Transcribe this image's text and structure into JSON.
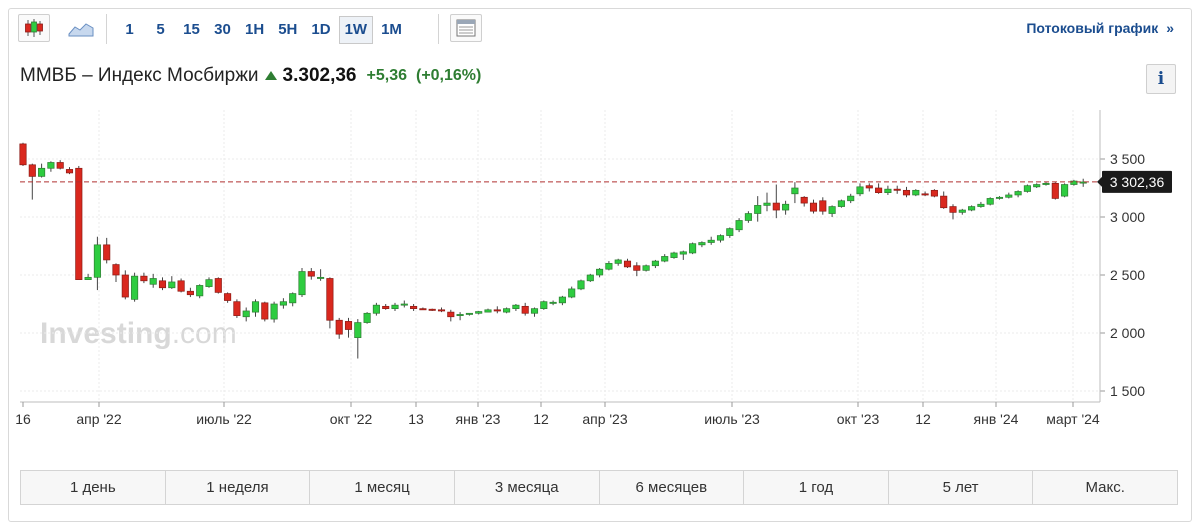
{
  "toolbar": {
    "candle_icon": "candlestick-icon",
    "area_icon": "area-chart-icon",
    "intervals": [
      "1",
      "5",
      "15",
      "30",
      "1H",
      "5H",
      "1D",
      "1W",
      "1M"
    ],
    "active_interval": "1W",
    "table_icon": "table-icon",
    "stream_link": "Потоковый график",
    "stream_chevron": "»"
  },
  "instrument": {
    "name": "ММВБ – Индекс Мосбиржи",
    "price": "3.302,36",
    "change": "+5,36",
    "change_pct": "(+0,16%)",
    "direction_icon": "up-arrow-icon",
    "info_label": "i"
  },
  "watermark": {
    "main": "Investing",
    "suffix": ".com"
  },
  "colors": {
    "up": "#2ecc40",
    "up_border": "#2e7d32",
    "down": "#d9281e",
    "down_border": "#8b1a14",
    "price_line": "#b03030",
    "accent": "#1b4d8f"
  },
  "chart_data": {
    "type": "candlestick",
    "interval": "1W",
    "y_ticks": [
      3500,
      3000,
      2500,
      2000,
      1500
    ],
    "y_tick_labels": [
      "3 500",
      "3 000",
      "2 500",
      "2 000",
      "1 500"
    ],
    "ylim": [
      1400,
      3550
    ],
    "current_price": 3302.36,
    "current_price_label": "3 302,36",
    "x_tick_labels": [
      "16",
      "апр '22",
      "июль '22",
      "окт '22",
      "13",
      "янв '23",
      "12",
      "апр '23",
      "июль '23",
      "окт '23",
      "12",
      "янв '24",
      "март '24"
    ],
    "grid": true,
    "candles": [
      [
        3630,
        3640,
        3440,
        3450
      ],
      [
        3450,
        3460,
        3150,
        3350
      ],
      [
        3350,
        3460,
        3340,
        3420
      ],
      [
        3420,
        3480,
        3390,
        3470
      ],
      [
        3470,
        3490,
        3410,
        3420
      ],
      [
        3410,
        3430,
        3370,
        3380
      ],
      [
        3420,
        3440,
        2460,
        2460
      ],
      [
        2460,
        2510,
        2460,
        2480
      ],
      [
        2480,
        2830,
        2370,
        2760
      ],
      [
        2760,
        2820,
        2600,
        2630
      ],
      [
        2590,
        2600,
        2440,
        2500
      ],
      [
        2500,
        2540,
        2290,
        2310
      ],
      [
        2290,
        2520,
        2270,
        2490
      ],
      [
        2490,
        2520,
        2430,
        2450
      ],
      [
        2420,
        2510,
        2390,
        2470
      ],
      [
        2450,
        2480,
        2370,
        2390
      ],
      [
        2390,
        2490,
        2380,
        2440
      ],
      [
        2450,
        2470,
        2350,
        2360
      ],
      [
        2360,
        2390,
        2310,
        2330
      ],
      [
        2320,
        2420,
        2300,
        2410
      ],
      [
        2400,
        2480,
        2390,
        2460
      ],
      [
        2470,
        2480,
        2340,
        2350
      ],
      [
        2340,
        2350,
        2260,
        2280
      ],
      [
        2270,
        2290,
        2130,
        2150
      ],
      [
        2140,
        2220,
        2100,
        2190
      ],
      [
        2180,
        2290,
        2140,
        2270
      ],
      [
        2260,
        2270,
        2100,
        2120
      ],
      [
        2120,
        2270,
        2090,
        2250
      ],
      [
        2240,
        2300,
        2210,
        2270
      ],
      [
        2260,
        2350,
        2230,
        2340
      ],
      [
        2330,
        2560,
        2310,
        2530
      ],
      [
        2530,
        2560,
        2460,
        2490
      ],
      [
        2470,
        2550,
        2450,
        2480
      ],
      [
        2470,
        2480,
        2040,
        2110
      ],
      [
        2110,
        2130,
        1950,
        1990
      ],
      [
        2100,
        2130,
        1960,
        2030
      ],
      [
        1960,
        2120,
        1780,
        2090
      ],
      [
        2090,
        2180,
        2080,
        2170
      ],
      [
        2170,
        2260,
        2150,
        2240
      ],
      [
        2230,
        2250,
        2200,
        2210
      ],
      [
        2210,
        2260,
        2190,
        2240
      ],
      [
        2240,
        2280,
        2220,
        2250
      ],
      [
        2230,
        2250,
        2190,
        2210
      ],
      [
        2210,
        2220,
        2200,
        2205
      ],
      [
        2205,
        2210,
        2190,
        2200
      ],
      [
        2200,
        2220,
        2180,
        2190
      ],
      [
        2180,
        2200,
        2100,
        2140
      ],
      [
        2150,
        2180,
        2110,
        2160
      ],
      [
        2160,
        2170,
        2150,
        2170
      ],
      [
        2170,
        2190,
        2160,
        2185
      ],
      [
        2180,
        2210,
        2180,
        2200
      ],
      [
        2200,
        2230,
        2170,
        2190
      ],
      [
        2180,
        2220,
        2170,
        2210
      ],
      [
        2210,
        2250,
        2190,
        2240
      ],
      [
        2230,
        2260,
        2150,
        2170
      ],
      [
        2170,
        2220,
        2140,
        2210
      ],
      [
        2210,
        2280,
        2200,
        2270
      ],
      [
        2260,
        2280,
        2240,
        2265
      ],
      [
        2260,
        2320,
        2240,
        2310
      ],
      [
        2310,
        2400,
        2300,
        2380
      ],
      [
        2380,
        2460,
        2370,
        2450
      ],
      [
        2450,
        2510,
        2440,
        2500
      ],
      [
        2500,
        2560,
        2480,
        2550
      ],
      [
        2550,
        2620,
        2540,
        2600
      ],
      [
        2600,
        2640,
        2580,
        2630
      ],
      [
        2620,
        2640,
        2560,
        2570
      ],
      [
        2580,
        2610,
        2490,
        2540
      ],
      [
        2540,
        2590,
        2530,
        2580
      ],
      [
        2580,
        2630,
        2560,
        2620
      ],
      [
        2620,
        2680,
        2610,
        2660
      ],
      [
        2650,
        2700,
        2640,
        2690
      ],
      [
        2680,
        2710,
        2630,
        2700
      ],
      [
        2690,
        2780,
        2680,
        2770
      ],
      [
        2760,
        2790,
        2740,
        2780
      ],
      [
        2780,
        2830,
        2760,
        2800
      ],
      [
        2800,
        2850,
        2780,
        2840
      ],
      [
        2840,
        2910,
        2820,
        2900
      ],
      [
        2890,
        2990,
        2870,
        2970
      ],
      [
        2970,
        3050,
        2950,
        3030
      ],
      [
        3030,
        3180,
        2960,
        3100
      ],
      [
        3100,
        3210,
        3050,
        3120
      ],
      [
        3120,
        3280,
        2990,
        3060
      ],
      [
        3060,
        3140,
        3020,
        3110
      ],
      [
        3200,
        3300,
        3120,
        3250
      ],
      [
        3170,
        3180,
        3090,
        3120
      ],
      [
        3120,
        3150,
        3030,
        3050
      ],
      [
        3140,
        3170,
        3020,
        3050
      ],
      [
        3030,
        3100,
        3000,
        3090
      ],
      [
        3090,
        3150,
        3080,
        3140
      ],
      [
        3140,
        3200,
        3120,
        3180
      ],
      [
        3200,
        3290,
        3180,
        3260
      ],
      [
        3270,
        3290,
        3220,
        3250
      ],
      [
        3250,
        3290,
        3200,
        3210
      ],
      [
        3210,
        3270,
        3190,
        3240
      ],
      [
        3240,
        3270,
        3200,
        3230
      ],
      [
        3230,
        3260,
        3170,
        3190
      ],
      [
        3190,
        3240,
        3180,
        3230
      ],
      [
        3200,
        3220,
        3180,
        3190
      ],
      [
        3230,
        3240,
        3170,
        3180
      ],
      [
        3180,
        3220,
        3070,
        3080
      ],
      [
        3090,
        3110,
        2980,
        3040
      ],
      [
        3040,
        3070,
        3020,
        3060
      ],
      [
        3060,
        3100,
        3050,
        3090
      ],
      [
        3090,
        3130,
        3080,
        3110
      ],
      [
        3110,
        3170,
        3100,
        3160
      ],
      [
        3160,
        3180,
        3150,
        3170
      ],
      [
        3170,
        3210,
        3160,
        3190
      ],
      [
        3190,
        3230,
        3170,
        3220
      ],
      [
        3220,
        3280,
        3210,
        3270
      ],
      [
        3260,
        3290,
        3250,
        3280
      ],
      [
        3280,
        3300,
        3270,
        3290
      ],
      [
        3290,
        3300,
        3150,
        3160
      ],
      [
        3180,
        3290,
        3170,
        3280
      ],
      [
        3280,
        3320,
        3270,
        3310
      ],
      [
        3300,
        3330,
        3260,
        3302
      ]
    ]
  },
  "ranges": [
    "1 день",
    "1 неделя",
    "1 месяц",
    "3 месяца",
    "6 месяцев",
    "1 год",
    "5 лет",
    "Макс."
  ]
}
